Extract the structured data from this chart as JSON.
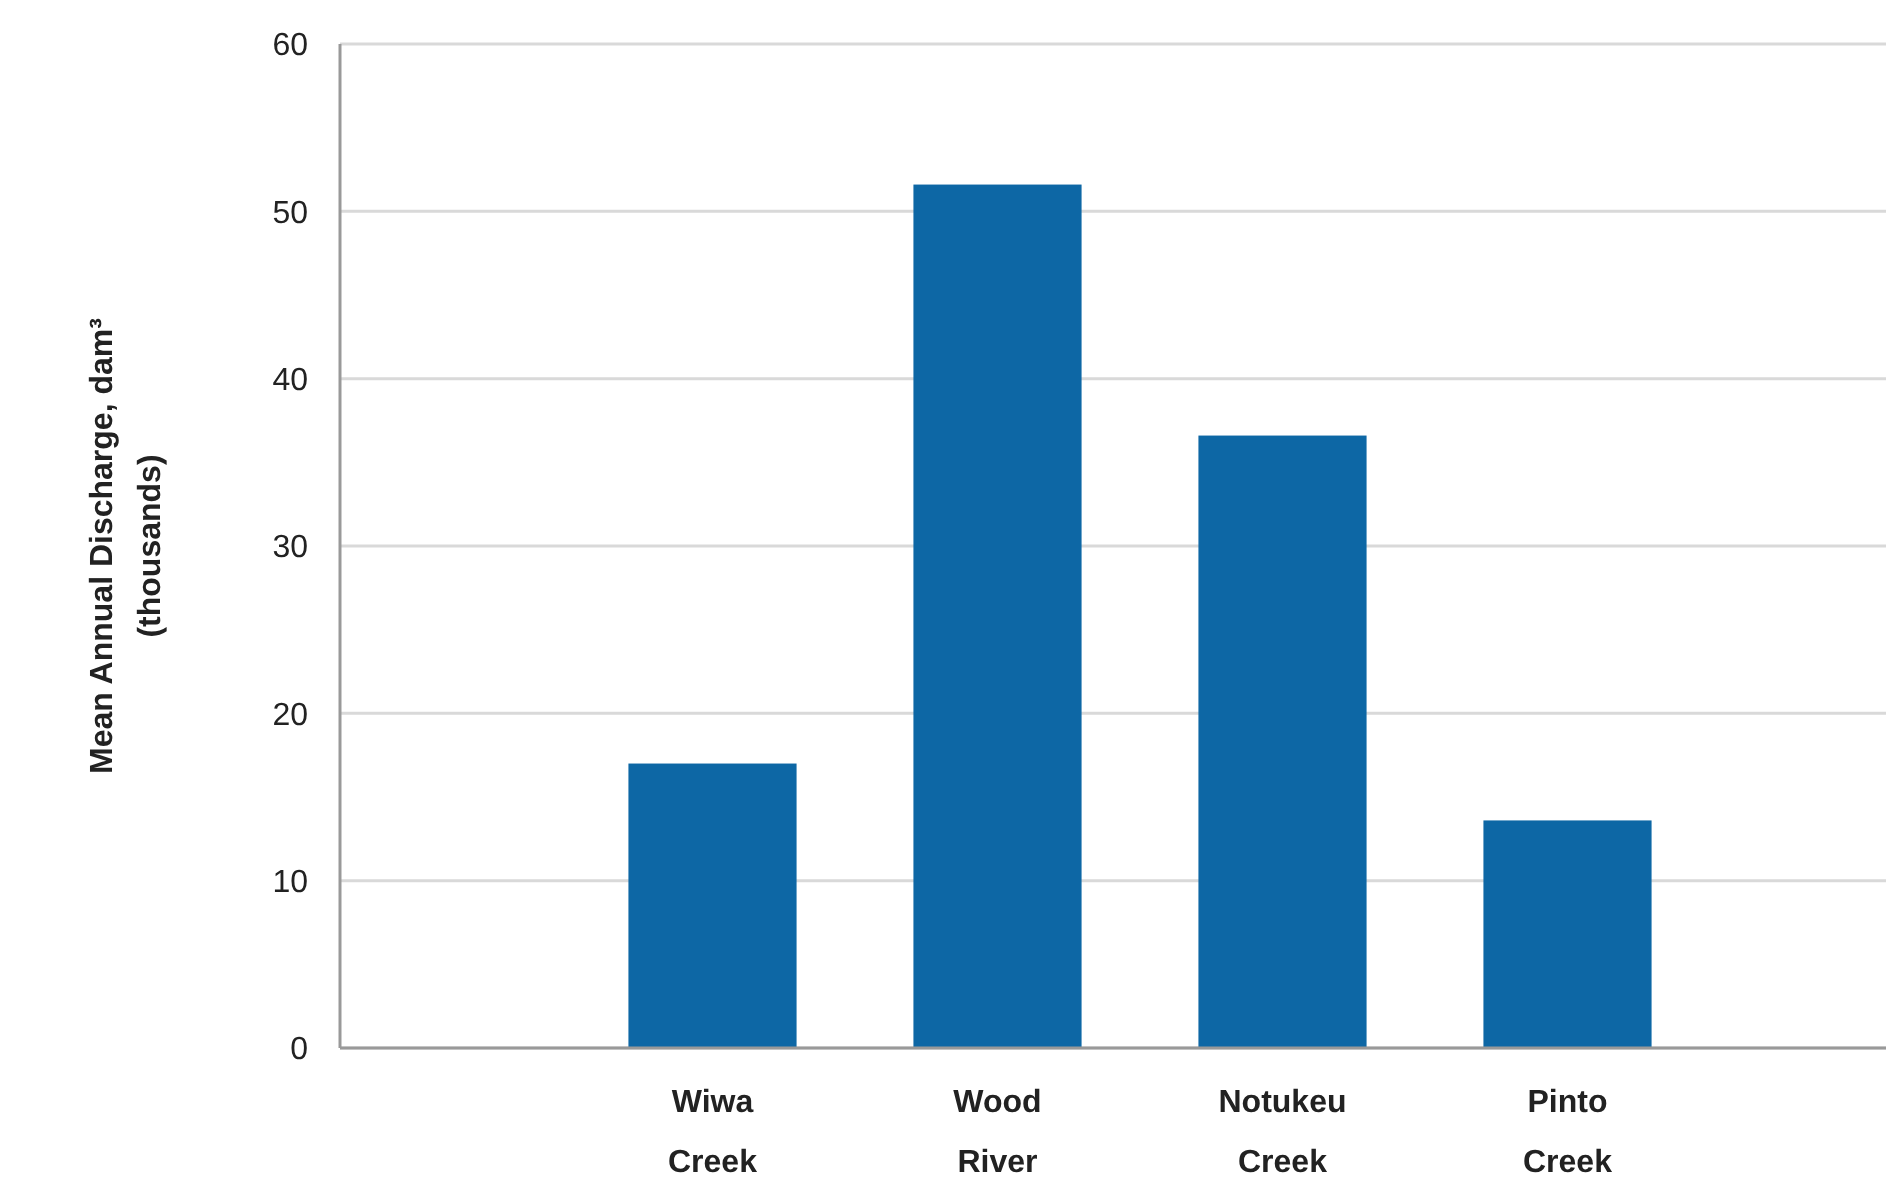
{
  "chart_data": {
    "type": "bar",
    "ylabel": "Mean Annual Discharge, dam³\n(thousands)",
    "categories": [
      "Wiwa Creek",
      "Wood River",
      "Notukeu Creek",
      "Pinto Creek"
    ],
    "values": [
      17,
      51.6,
      36.6,
      13.6
    ],
    "color": "#0d67a5",
    "ylim": [
      0,
      60
    ],
    "yticks": [
      0,
      10,
      20,
      30,
      40,
      50,
      60
    ],
    "grid": "y"
  }
}
